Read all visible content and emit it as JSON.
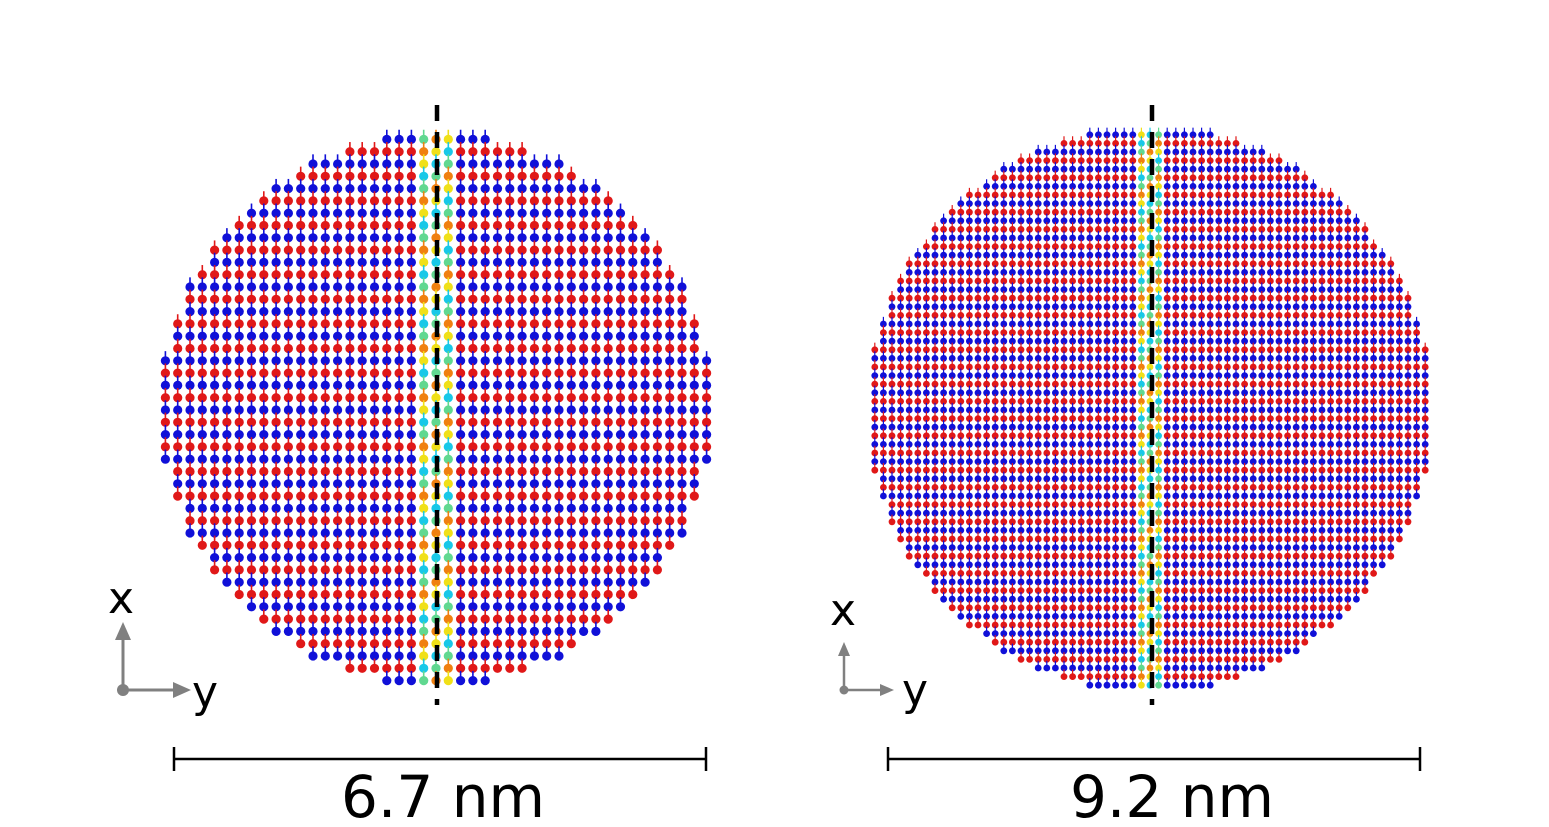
{
  "colors": {
    "spin_a": "#e01818",
    "spin_b": "#1010d8",
    "wall_1": "#18c8e8",
    "wall_2": "#f0e018",
    "wall_3": "#f08010",
    "wall_4": "#60d890",
    "divider": "#000000",
    "scale_bar": "#000000",
    "axis_arrow": "#808080"
  },
  "panels": [
    {
      "scale_label": "6.7 nm",
      "axis": {
        "x_label": "x",
        "y_label": "y"
      }
    },
    {
      "scale_label": "9.2 nm",
      "axis": {
        "x_label": "x",
        "y_label": "y"
      }
    }
  ]
}
